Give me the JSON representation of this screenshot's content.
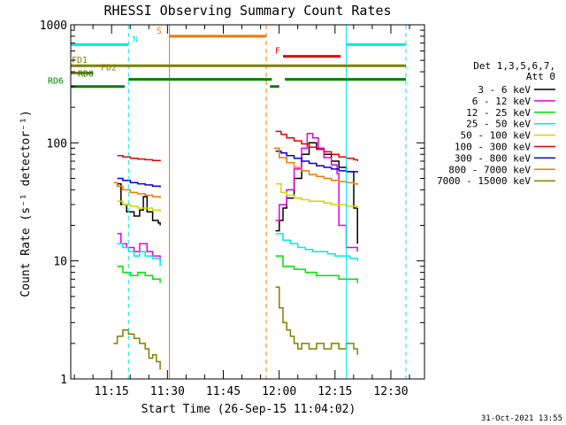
{
  "chart_data": {
    "type": "line",
    "title": "RHESSI Observing Summary Count Rates",
    "xlabel": "Start Time (26-Sep-15 11:04:02)",
    "ylabel": "Count Rate (s⁻¹ detector⁻¹)",
    "y_scale": "log",
    "ylim": [
      1,
      1000
    ],
    "xlim_minutes_after_start": [
      0,
      95
    ],
    "x_ticks": [
      {
        "label": "11:15",
        "minutes": 10.97
      },
      {
        "label": "11:30",
        "minutes": 25.97
      },
      {
        "label": "11:45",
        "minutes": 40.97
      },
      {
        "label": "12:00",
        "minutes": 55.97
      },
      {
        "label": "12:15",
        "minutes": 70.97
      },
      {
        "label": "12:30",
        "minutes": 85.97
      }
    ],
    "y_ticks": [
      {
        "label": "1",
        "value": 1
      },
      {
        "label": "10",
        "value": 10
      },
      {
        "label": "100",
        "value": 100
      },
      {
        "label": "1000",
        "value": 1000
      }
    ],
    "legend_header": [
      "Det 1,3,5,6,7,",
      "Att 0"
    ],
    "legend_placement": "right",
    "footer": "31-Oct-2021 13:55",
    "series": [
      {
        "name": "3 - 6 keV",
        "color": "#000000",
        "segments": [
          [
            [
              12.5,
              45
            ],
            [
              13.5,
              30
            ],
            [
              15,
              26
            ],
            [
              17,
              24
            ],
            [
              18.5,
              27
            ],
            [
              19.5,
              35
            ],
            [
              20.5,
              26
            ],
            [
              22,
              22
            ],
            [
              23.5,
              21
            ],
            [
              24,
              20
            ]
          ],
          [
            [
              55,
              18
            ],
            [
              56,
              22
            ],
            [
              57,
              28
            ],
            [
              58,
              34
            ],
            [
              60,
              50
            ],
            [
              62,
              80
            ],
            [
              64,
              100
            ],
            [
              66,
              90
            ],
            [
              68,
              80
            ],
            [
              70,
              70
            ],
            [
              72,
              62
            ],
            [
              74,
              57
            ],
            [
              76,
              28
            ],
            [
              77,
              14
            ]
          ]
        ]
      },
      {
        "name": "6 - 12 keV",
        "color": "#e000e0",
        "segments": [
          [
            [
              12.5,
              17
            ],
            [
              13.5,
              14
            ],
            [
              15,
              13
            ],
            [
              17,
              12
            ],
            [
              18.5,
              14
            ],
            [
              19.5,
              14
            ],
            [
              20.5,
              12
            ],
            [
              22,
              11
            ],
            [
              24,
              10
            ]
          ],
          [
            [
              55,
              22
            ],
            [
              56,
              30
            ],
            [
              58,
              40
            ],
            [
              60,
              60
            ],
            [
              62,
              90
            ],
            [
              63.5,
              120
            ],
            [
              65,
              110
            ],
            [
              66.5,
              90
            ],
            [
              68,
              75
            ],
            [
              70,
              65
            ],
            [
              71.5,
              55
            ],
            [
              72,
              20
            ],
            [
              74,
              13
            ],
            [
              77,
              12
            ]
          ]
        ]
      },
      {
        "name": "12 - 25 keV",
        "color": "#00e000",
        "segments": [
          [
            [
              12.5,
              9
            ],
            [
              14,
              8
            ],
            [
              16,
              7.5
            ],
            [
              18,
              8
            ],
            [
              20,
              7.5
            ],
            [
              22,
              7
            ],
            [
              24,
              6.5
            ]
          ],
          [
            [
              55,
              11
            ],
            [
              57,
              9
            ],
            [
              60,
              8.5
            ],
            [
              63,
              8
            ],
            [
              66,
              7.5
            ],
            [
              69,
              7.5
            ],
            [
              72,
              7
            ],
            [
              75,
              7
            ],
            [
              77,
              6.5
            ]
          ]
        ]
      },
      {
        "name": "25 - 50 keV",
        "color": "#00e8e8",
        "segments": [
          [
            [
              12.5,
              14
            ],
            [
              14,
              13
            ],
            [
              15.5,
              12
            ],
            [
              17,
              11
            ],
            [
              18.5,
              12
            ],
            [
              20,
              11
            ],
            [
              22,
              10.5
            ],
            [
              24,
              9
            ]
          ],
          [
            [
              55,
              17
            ],
            [
              57,
              15
            ],
            [
              59,
              14
            ],
            [
              61,
              13
            ],
            [
              63,
              12.5
            ],
            [
              65,
              12
            ],
            [
              67,
              12
            ],
            [
              69,
              11.5
            ],
            [
              71,
              11
            ],
            [
              73,
              11
            ],
            [
              75,
              10.5
            ],
            [
              77,
              10
            ]
          ]
        ]
      },
      {
        "name": "50 - 100 keV",
        "color": "#d4d400",
        "segments": [
          [
            [
              12.5,
              32
            ],
            [
              14,
              30
            ],
            [
              16,
              29
            ],
            [
              18,
              28
            ],
            [
              20,
              28
            ],
            [
              22,
              27
            ],
            [
              24,
              26
            ]
          ],
          [
            [
              55,
              45
            ],
            [
              56.5,
              38
            ],
            [
              58,
              36
            ],
            [
              60,
              34
            ],
            [
              62,
              33
            ],
            [
              64,
              32
            ],
            [
              66,
              32
            ],
            [
              68,
              31
            ],
            [
              70,
              30
            ],
            [
              72,
              30
            ],
            [
              74,
              29
            ],
            [
              76,
              29
            ],
            [
              77,
              28
            ]
          ]
        ]
      },
      {
        "name": "100 - 300 keV",
        "color": "#e80000",
        "segments": [
          [
            [
              12.5,
              78
            ],
            [
              14,
              76
            ],
            [
              16,
              74
            ],
            [
              18,
              73
            ],
            [
              20,
              72
            ],
            [
              22,
              71
            ],
            [
              24,
              70
            ]
          ],
          [
            [
              55,
              125
            ],
            [
              56.5,
              118
            ],
            [
              58,
              110
            ],
            [
              60,
              104
            ],
            [
              62,
              98
            ],
            [
              64,
              92
            ],
            [
              66,
              88
            ],
            [
              68,
              84
            ],
            [
              70,
              80
            ],
            [
              72,
              76
            ],
            [
              74,
              74
            ],
            [
              76,
              72
            ],
            [
              77,
              70
            ]
          ]
        ]
      },
      {
        "name": "300 - 800 keV",
        "color": "#0000e0",
        "segments": [
          [
            [
              12.5,
              50
            ],
            [
              14,
              48
            ],
            [
              16,
              46
            ],
            [
              18,
              45
            ],
            [
              20,
              44
            ],
            [
              22,
              43
            ],
            [
              24,
              42
            ]
          ],
          [
            [
              55,
              85
            ],
            [
              56.5,
              82
            ],
            [
              58,
              78
            ],
            [
              60,
              74
            ],
            [
              62,
              70
            ],
            [
              64,
              67
            ],
            [
              66,
              64
            ],
            [
              68,
              62
            ],
            [
              70,
              60
            ],
            [
              72,
              58
            ],
            [
              74,
              57
            ],
            [
              76,
              57
            ],
            [
              77,
              56
            ]
          ]
        ]
      },
      {
        "name": "800 - 7000 keV",
        "color": "#f07800",
        "segments": [
          [
            [
              11.5,
              46
            ],
            [
              12.5,
              43
            ],
            [
              14,
              40
            ],
            [
              16,
              38
            ],
            [
              18,
              37
            ],
            [
              20,
              36
            ],
            [
              22,
              35
            ],
            [
              24,
              34
            ]
          ],
          [
            [
              54.5,
              90
            ],
            [
              56,
              75
            ],
            [
              58,
              68
            ],
            [
              60,
              62
            ],
            [
              62,
              58
            ],
            [
              64,
              54
            ],
            [
              66,
              52
            ],
            [
              68,
              50
            ],
            [
              70,
              48
            ],
            [
              72,
              47
            ],
            [
              74,
              46
            ],
            [
              76,
              45
            ],
            [
              77,
              44
            ]
          ]
        ]
      },
      {
        "name": "7000 - 15000 keV",
        "color": "#808000",
        "segments": [
          [
            [
              11.5,
              2
            ],
            [
              12.5,
              2.3
            ],
            [
              14,
              2.6
            ],
            [
              15.5,
              2.4
            ],
            [
              17,
              2.2
            ],
            [
              18.5,
              2
            ],
            [
              20,
              1.8
            ],
            [
              21,
              1.5
            ],
            [
              22,
              1.6
            ],
            [
              23,
              1.4
            ],
            [
              24,
              1.2
            ]
          ],
          [
            [
              55,
              6
            ],
            [
              56,
              4
            ],
            [
              57,
              3
            ],
            [
              58,
              2.6
            ],
            [
              59,
              2.3
            ],
            [
              60,
              2
            ],
            [
              61,
              1.8
            ],
            [
              62,
              2
            ],
            [
              63,
              2
            ],
            [
              64,
              1.8
            ],
            [
              66,
              2
            ],
            [
              68,
              1.8
            ],
            [
              70,
              2
            ],
            [
              72,
              1.8
            ],
            [
              74,
              2
            ],
            [
              76,
              1.8
            ],
            [
              77,
              1.6
            ]
          ]
        ]
      }
    ],
    "state_bars": [
      {
        "label": "N",
        "color": "#00e8e8",
        "y_value": 680,
        "segments": [
          [
            0,
            15.5
          ],
          [
            74,
            90
          ]
        ]
      },
      {
        "label": "S",
        "color": "#f07800",
        "y_value": 800,
        "segments": [
          [
            26.5,
            52.5
          ]
        ]
      },
      {
        "label": "F",
        "color": "#e80000",
        "y_value": 540,
        "segments": [
          [
            57,
            72.5
          ]
        ]
      },
      {
        "label": "FD1",
        "color": "#808000",
        "y_value": 450,
        "segments": [
          [
            0,
            90
          ]
        ]
      },
      {
        "label": "FD2",
        "color": "#808000",
        "y_value": 390,
        "segments": [
          [
            0,
            6
          ]
        ]
      },
      {
        "label": "RD0",
        "color": "#008000",
        "y_value": 345,
        "segments": [
          [
            15.5,
            54
          ],
          [
            57.5,
            90
          ]
        ]
      },
      {
        "label": "RD6",
        "color": "#008000",
        "y_value": 300,
        "segments": [
          [
            0,
            14.5
          ],
          [
            53.5,
            56
          ]
        ]
      }
    ],
    "vertical_lines": [
      {
        "minutes": 0,
        "color": "#00e8e8",
        "style": "solid"
      },
      {
        "minutes": 15.5,
        "color": "#00e8e8",
        "style": "dashed"
      },
      {
        "minutes": 26.5,
        "color": "#f07800",
        "style": "solid"
      },
      {
        "minutes": 52.5,
        "color": "#f07800",
        "style": "dashed"
      },
      {
        "minutes": 74,
        "color": "#00e8e8",
        "style": "solid"
      },
      {
        "minutes": 90,
        "color": "#00e8e8",
        "style": "dashed"
      }
    ]
  }
}
